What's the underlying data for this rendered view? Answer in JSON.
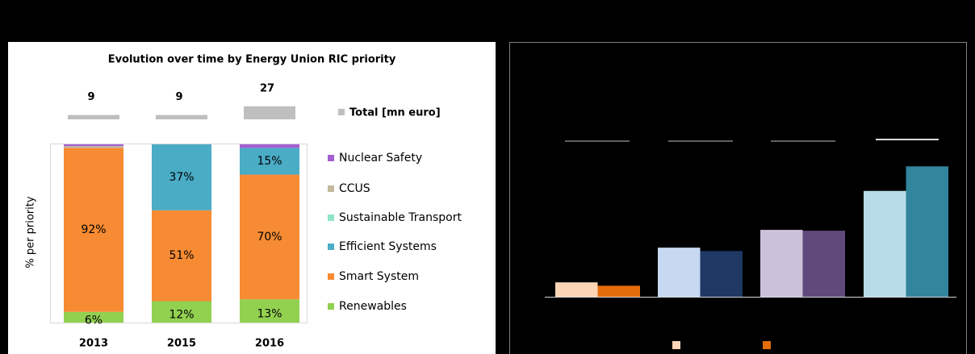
{
  "chart_data": [
    {
      "type": "bar",
      "stacked": true,
      "title": "Evolution over time by Energy Union RIC priority",
      "y_label": "% per priority",
      "categories": [
        "2013",
        "2015",
        "2016"
      ],
      "ylim": [
        0,
        100
      ],
      "totals": {
        "name": "Total [mn euro]",
        "color": "#bfbfbf",
        "values": [
          9,
          9,
          27
        ]
      },
      "series": [
        {
          "name": "Renewables",
          "color": "#92d050",
          "values": [
            6,
            12,
            13
          ],
          "value_labels": [
            "6%",
            "12%",
            "13%"
          ]
        },
        {
          "name": "Smart System",
          "color": "#f68b33",
          "values": [
            92,
            51,
            70
          ],
          "value_labels": [
            "92%",
            "51%",
            "70%"
          ]
        },
        {
          "name": "Efficient Systems",
          "color": "#4bacc6",
          "values": [
            0,
            37,
            15
          ],
          "value_labels": [
            null,
            "37%",
            "15%"
          ]
        },
        {
          "name": "Sustainable Transport",
          "color": "#8fe3c8",
          "values": [
            0,
            0,
            0
          ]
        },
        {
          "name": "CCUS",
          "color": "#c4b99b",
          "values": [
            1,
            0,
            0
          ]
        },
        {
          "name": "Nuclear Safety",
          "color": "#a35fd0",
          "values": [
            1,
            1,
            2
          ]
        }
      ]
    },
    {
      "type": "bar",
      "categories": [
        null,
        null,
        null,
        null
      ],
      "ylim": [
        0,
        160
      ],
      "series": [
        {
          "colors": [
            "#fbd5b5",
            "#c6d9f1",
            "#ccc1da",
            "#b7dee8"
          ],
          "values": [
            17,
            58,
            79,
            125
          ]
        },
        {
          "colors": [
            "#e46c0a",
            "#1f3864",
            "#604a7b",
            "#31859c"
          ],
          "values": [
            13,
            54,
            78,
            154
          ]
        }
      ]
    }
  ]
}
